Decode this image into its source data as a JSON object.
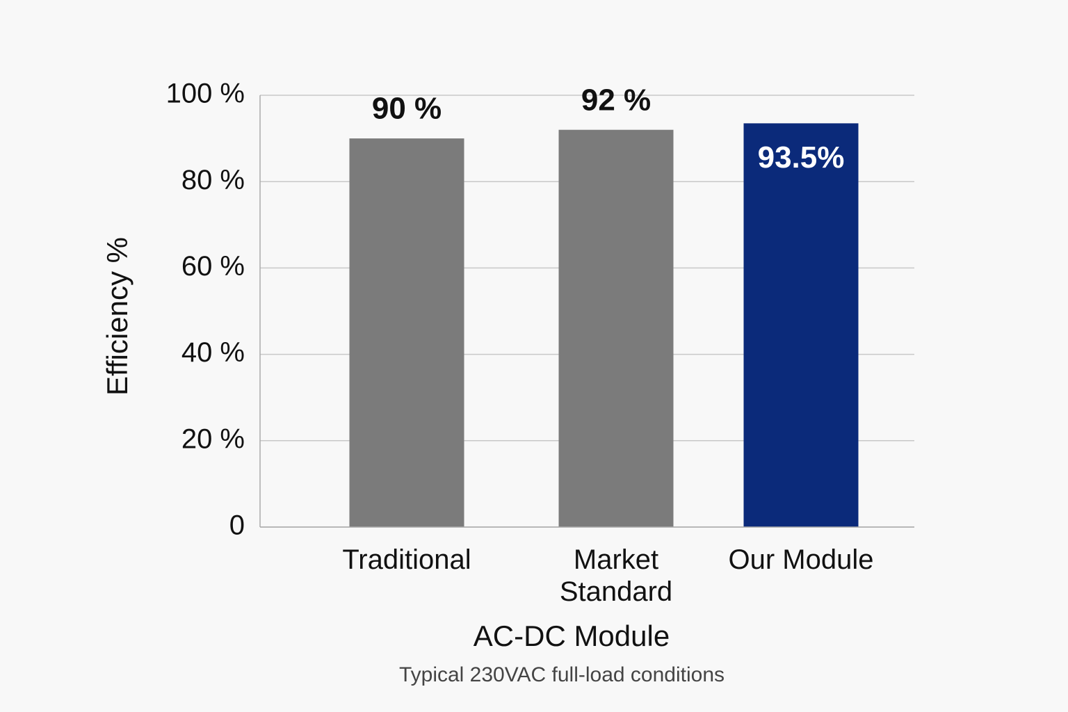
{
  "chart_data": {
    "type": "bar",
    "y_label": "Efficiency %",
    "x_label": "AC-DC Module",
    "note": "Typical 230VAC full-load conditions",
    "categories": [
      "Traditional",
      "Market Standard",
      "Our Module"
    ],
    "values": [
      90,
      92,
      93.5
    ],
    "value_labels": [
      "90 %",
      "92 %",
      "93.5%"
    ],
    "colors": [
      "#7b7b7b",
      "#7b7b7b",
      "#0b2a7a"
    ],
    "ylim": [
      0,
      100
    ],
    "yticks": [
      0,
      {
        "value": 20,
        "label": "20 %"
      },
      {
        "value": 40,
        "label": "40 %"
      },
      {
        "value": 60,
        "label": "60 %"
      },
      {
        "value": 80,
        "label": "80 %"
      },
      {
        "value": 100,
        "label": "100 %"
      }
    ],
    "grid": true
  }
}
